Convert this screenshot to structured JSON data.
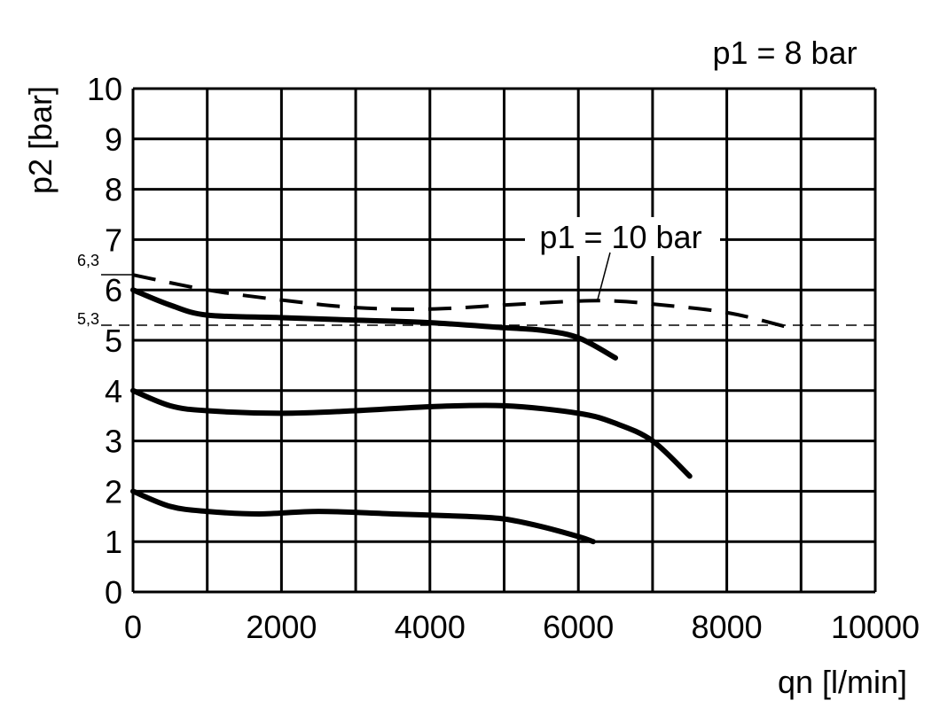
{
  "chart_data": {
    "type": "line",
    "title": "p1 = 8 bar",
    "xlabel": "qn [l/min]",
    "ylabel": "p2 [bar]",
    "xlim": [
      0,
      10000
    ],
    "ylim": [
      0,
      10
    ],
    "x_ticks": [
      "0",
      "2000",
      "4000",
      "6000",
      "8000",
      "10000"
    ],
    "y_ticks": [
      "0",
      "1",
      "2",
      "3",
      "4",
      "5",
      "6",
      "7",
      "8",
      "9",
      "10"
    ],
    "grid": true,
    "reference_line": {
      "value": 5.3,
      "label": "5,3",
      "style": "dashed"
    },
    "annotations": [
      {
        "text": "p1 = 10 bar",
        "points_to_series": 0
      },
      {
        "text": "6,3"
      }
    ],
    "series": [
      {
        "name": "p1 = 10 bar",
        "style": "dashed",
        "x": [
          0,
          1000,
          2000,
          3000,
          4000,
          5000,
          6000,
          6500,
          7000,
          8000,
          8850
        ],
        "y": [
          6.3,
          6.0,
          5.8,
          5.65,
          5.62,
          5.7,
          5.78,
          5.78,
          5.72,
          5.55,
          5.25
        ]
      },
      {
        "style": "solid",
        "x": [
          0,
          500,
          1000,
          2000,
          3000,
          4000,
          5000,
          5500,
          6000,
          6500
        ],
        "y": [
          6.0,
          5.7,
          5.5,
          5.45,
          5.4,
          5.35,
          5.25,
          5.2,
          5.05,
          4.65
        ]
      },
      {
        "style": "solid",
        "x": [
          0,
          500,
          1000,
          2000,
          3000,
          4000,
          5000,
          6000,
          6500,
          7000,
          7500
        ],
        "y": [
          4.0,
          3.7,
          3.6,
          3.55,
          3.6,
          3.68,
          3.7,
          3.55,
          3.35,
          3.0,
          2.3
        ]
      },
      {
        "style": "solid",
        "x": [
          0,
          500,
          1000,
          1700,
          2500,
          3500,
          4500,
          5000,
          5500,
          6000,
          6200
        ],
        "y": [
          2.0,
          1.7,
          1.6,
          1.55,
          1.6,
          1.55,
          1.5,
          1.45,
          1.3,
          1.1,
          1.0
        ]
      }
    ]
  }
}
